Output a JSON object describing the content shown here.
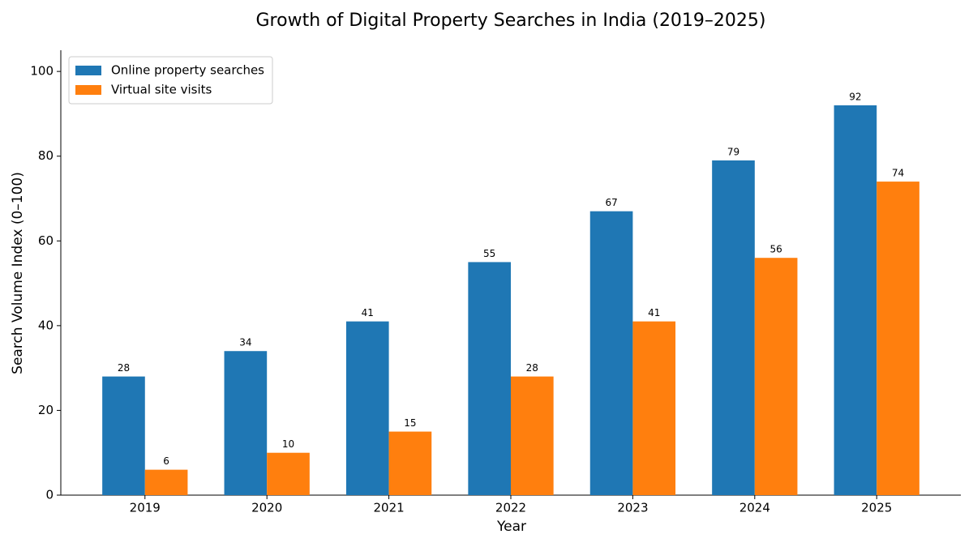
{
  "chart_data": {
    "type": "bar",
    "title": "Growth of Digital Property Searches in India (2019–2025)",
    "x_label": "Year",
    "y_label": "Search Volume Index (0–100)",
    "categories": [
      "2019",
      "2020",
      "2021",
      "2022",
      "2023",
      "2024",
      "2025"
    ],
    "series": [
      {
        "name": "Online property searches",
        "color": "#1f77b4",
        "values": [
          28,
          34,
          41,
          55,
          67,
          79,
          92
        ]
      },
      {
        "name": "Virtual site visits",
        "color": "#ff7f0e",
        "values": [
          6,
          10,
          15,
          28,
          41,
          56,
          74
        ]
      }
    ],
    "ylim": [
      0,
      105
    ],
    "yticks": [
      0,
      20,
      40,
      60,
      80,
      100
    ],
    "legend": "upper left",
    "grid": false
  }
}
